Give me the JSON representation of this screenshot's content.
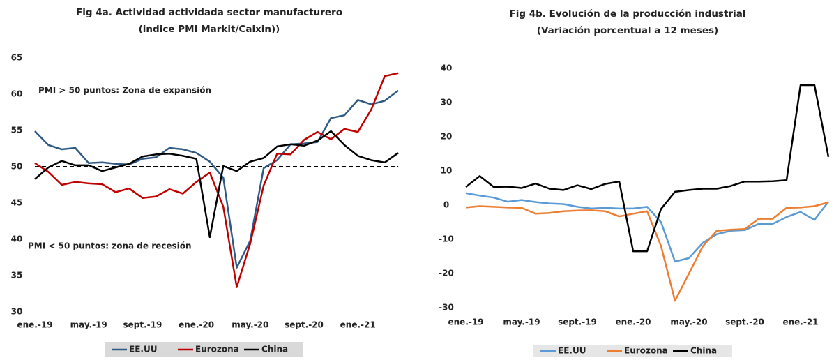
{
  "chart_data": [
    {
      "type": "line",
      "title": [
        "Fig 4a. Actividad actividada sector manufacturero",
        "(indice PMI Markit/Caixin))"
      ],
      "categories": [
        "ene.-19",
        null,
        null,
        null,
        "may.-19",
        null,
        null,
        null,
        "sept.-19",
        null,
        null,
        null,
        "ene.-20",
        null,
        null,
        null,
        "may.-20",
        null,
        null,
        null,
        "sept.-20",
        null,
        null,
        null,
        "ene.-21",
        null,
        null,
        null
      ],
      "series": [
        {
          "name": "EE.UU",
          "color": "#2e5a84",
          "values": [
            54.9,
            53,
            52.4,
            52.6,
            50.5,
            50.6,
            50.4,
            50.3,
            51.1,
            51.3,
            52.6,
            52.4,
            51.9,
            50.7,
            48.5,
            36.1,
            39.8,
            49.8,
            50.9,
            53.1,
            53.2,
            53.4,
            56.7,
            57.1,
            59.2,
            58.6,
            59.1,
            60.5
          ]
        },
        {
          "name": "Eurozona",
          "color": "#c00000",
          "values": [
            50.5,
            49.3,
            47.5,
            47.9,
            47.7,
            47.6,
            46.5,
            47,
            45.7,
            45.9,
            46.9,
            46.3,
            47.9,
            49.2,
            44.5,
            33.4,
            39.4,
            47.4,
            51.8,
            51.7,
            53.7,
            54.8,
            53.8,
            55.2,
            54.8,
            57.9,
            62.5,
            62.9
          ]
        },
        {
          "name": "China",
          "color": "#000000",
          "values": [
            48.3,
            49.9,
            50.8,
            50.2,
            50.2,
            49.4,
            49.9,
            50.4,
            51.4,
            51.7,
            51.8,
            51.5,
            51.1,
            40.3,
            50.1,
            49.4,
            50.7,
            51.2,
            52.8,
            53.1,
            52.9,
            53.6,
            54.9,
            53,
            51.5,
            50.9,
            50.6,
            51.9
          ]
        }
      ],
      "ylim": [
        30,
        65
      ],
      "yticks": [
        30,
        35,
        40,
        45,
        50,
        55,
        60,
        65
      ],
      "reference_line": 50,
      "annotations": [
        "PMI > 50 puntos: Zona de expansión",
        "PMI < 50 puntos: zona de recesión"
      ]
    },
    {
      "type": "line",
      "title": [
        "Fig 4b. Evolución de la producción industrial",
        "(Variación porcentual a 12 meses)"
      ],
      "categories": [
        "ene.-19",
        null,
        null,
        null,
        "may.-19",
        null,
        null,
        null,
        "sept.-19",
        null,
        null,
        null,
        "ene.-20",
        null,
        null,
        null,
        "may.-20",
        null,
        null,
        null,
        "sept.-20",
        null,
        null,
        null,
        "ene.-21",
        null,
        null
      ],
      "series": [
        {
          "name": "EE.UU",
          "color": "#5b9bd5",
          "values": [
            3.5,
            2.8,
            2.2,
            1.0,
            1.5,
            0.9,
            0.5,
            0.3,
            -0.5,
            -1,
            -0.8,
            -1,
            -1,
            -0.5,
            -5,
            -16.5,
            -15.5,
            -11,
            -8.5,
            -7.5,
            -7.3,
            -5.5,
            -5.5,
            -3.5,
            -2,
            -4.3,
            1
          ]
        },
        {
          "name": "Eurozona",
          "color": "#ed7d31",
          "values": [
            -0.7,
            -0.3,
            -0.5,
            -0.7,
            -0.8,
            -2.5,
            -2.3,
            -1.8,
            -1.6,
            -1.5,
            -1.8,
            -3.3,
            -2.5,
            -1.8,
            -12,
            -28,
            -20,
            -12,
            -7.5,
            -7.2,
            -7,
            -4,
            -4,
            -0.8,
            -0.7,
            -0.3,
            0.8
          ]
        },
        {
          "name": "China",
          "color": "#000000",
          "values": [
            5.3,
            8.5,
            5.3,
            5.4,
            5,
            6.3,
            4.8,
            4.4,
            5.8,
            4.7,
            6.2,
            6.9,
            -13.5,
            -13.5,
            -1.1,
            3.9,
            4.4,
            4.8,
            4.8,
            5.6,
            6.9,
            6.9,
            7,
            7.3,
            35.1,
            35.1,
            14.1
          ]
        }
      ],
      "ylim": [
        -30,
        40
      ],
      "yticks": [
        -30,
        -20,
        -10,
        0,
        10,
        20,
        30,
        40
      ]
    }
  ]
}
